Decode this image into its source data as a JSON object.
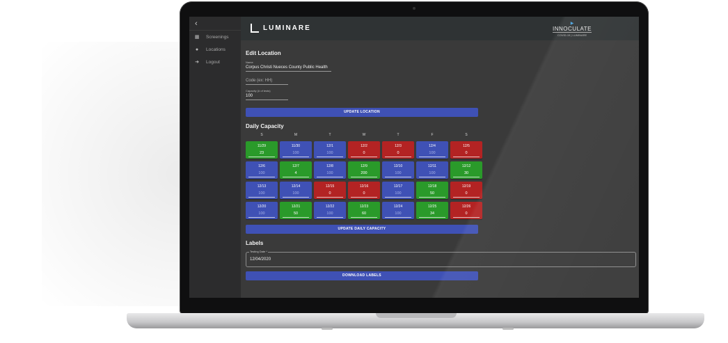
{
  "sidebar": {
    "back_icon": "chevron-left-icon",
    "items": [
      {
        "label": "Screenings",
        "icon": "dashboard-icon"
      },
      {
        "label": "Locations",
        "icon": "map-pin-icon"
      },
      {
        "label": "Logout",
        "icon": "logout-icon"
      }
    ]
  },
  "header": {
    "logo_text": "LUMINARE",
    "brand2_name": "INNOCULATE",
    "brand2_sub": "COVID-19  |  LUMINARE"
  },
  "edit_location": {
    "title": "Edit Location",
    "name_label": "Name",
    "name_value": "Corpus Christi Nueces County Public Health",
    "code_placeholder": "Code (ex: HH)",
    "capacity_label": "Capacity (# of tests)",
    "capacity_value": "100",
    "update_button": "UPDATE LOCATION"
  },
  "daily_capacity": {
    "title": "Daily Capacity",
    "weekdays": [
      "S",
      "M",
      "T",
      "W",
      "T",
      "F",
      "S"
    ],
    "rows": [
      [
        {
          "date": "11/29",
          "value": "23",
          "status": "green"
        },
        {
          "date": "11/30",
          "value": "100",
          "status": "blue"
        },
        {
          "date": "12/1",
          "value": "100",
          "status": "blue"
        },
        {
          "date": "12/2",
          "value": "0",
          "status": "red"
        },
        {
          "date": "12/3",
          "value": "0",
          "status": "red"
        },
        {
          "date": "12/4",
          "value": "100",
          "status": "blue"
        },
        {
          "date": "12/5",
          "value": "0",
          "status": "red"
        }
      ],
      [
        {
          "date": "12/6",
          "value": "100",
          "status": "blue"
        },
        {
          "date": "12/7",
          "value": "4",
          "status": "green"
        },
        {
          "date": "12/8",
          "value": "100",
          "status": "blue"
        },
        {
          "date": "12/9",
          "value": "200",
          "status": "green"
        },
        {
          "date": "12/10",
          "value": "100",
          "status": "blue"
        },
        {
          "date": "12/11",
          "value": "100",
          "status": "blue"
        },
        {
          "date": "12/12",
          "value": "30",
          "status": "green"
        }
      ],
      [
        {
          "date": "12/13",
          "value": "100",
          "status": "blue"
        },
        {
          "date": "12/14",
          "value": "100",
          "status": "blue"
        },
        {
          "date": "12/15",
          "value": "0",
          "status": "red"
        },
        {
          "date": "12/16",
          "value": "0",
          "status": "red"
        },
        {
          "date": "12/17",
          "value": "100",
          "status": "blue"
        },
        {
          "date": "12/18",
          "value": "50",
          "status": "green"
        },
        {
          "date": "12/19",
          "value": "0",
          "status": "red"
        }
      ],
      [
        {
          "date": "12/20",
          "value": "100",
          "status": "blue"
        },
        {
          "date": "12/21",
          "value": "50",
          "status": "green"
        },
        {
          "date": "12/22",
          "value": "100",
          "status": "blue"
        },
        {
          "date": "12/23",
          "value": "60",
          "status": "green"
        },
        {
          "date": "12/24",
          "value": "100",
          "status": "blue"
        },
        {
          "date": "12/25",
          "value": "34",
          "status": "green"
        },
        {
          "date": "12/26",
          "value": "0",
          "status": "red"
        }
      ]
    ],
    "update_button": "UPDATE DAILY CAPACITY"
  },
  "labels": {
    "title": "Labels",
    "testing_date_label": "Testing Date *",
    "testing_date_value": "12/04/2020",
    "download_button": "DOWNLOAD LABELS"
  },
  "colors": {
    "green": "#2a9a2a",
    "blue": "#3f51b5",
    "red": "#b32323"
  }
}
